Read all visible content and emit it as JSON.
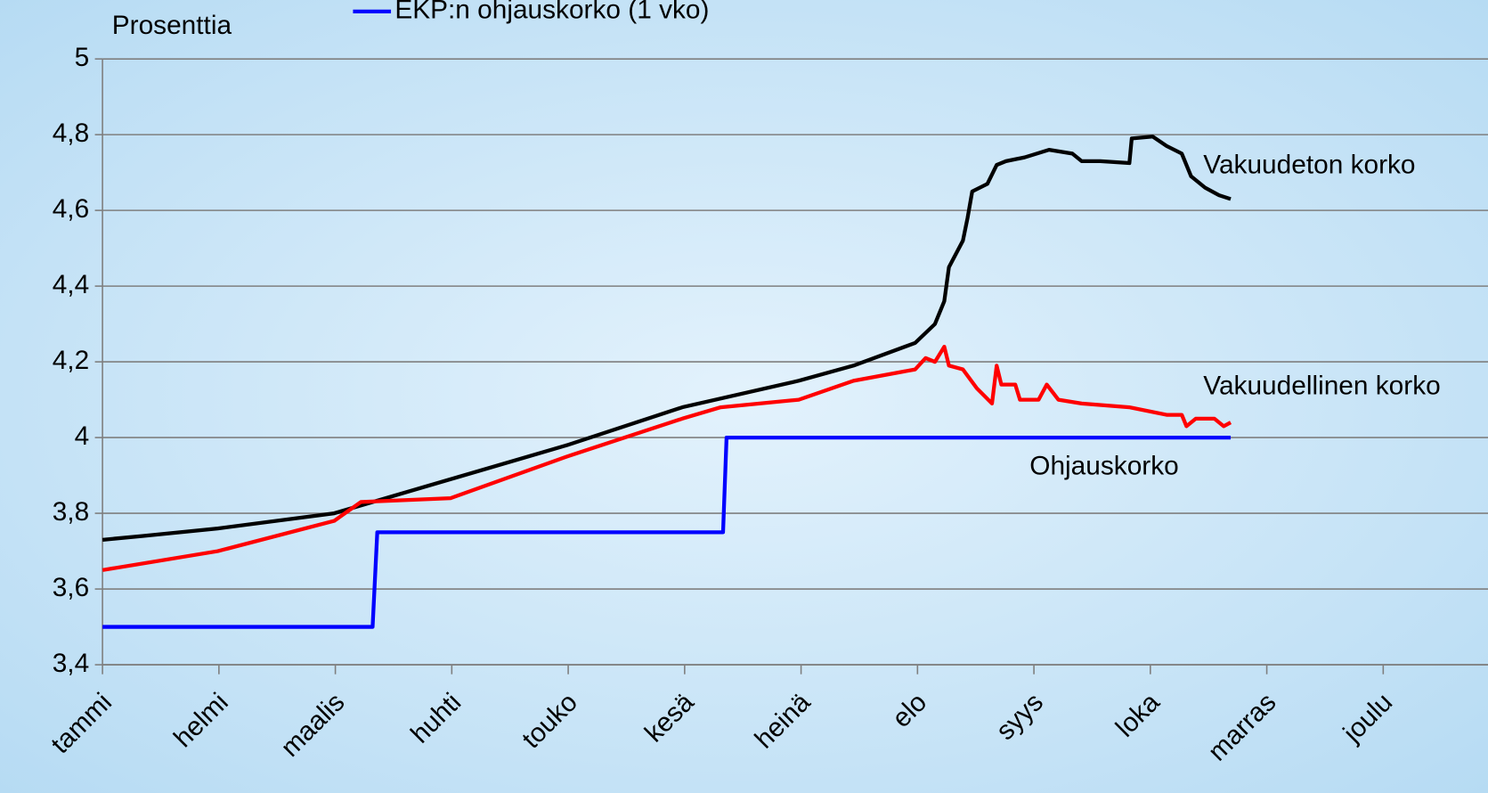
{
  "chart_data": {
    "type": "line",
    "ylabel": "Prosenttia",
    "xlim": [
      0,
      11.9
    ],
    "xticks": [
      {
        "value": 0,
        "label": "tammi"
      },
      {
        "value": 1,
        "label": "helmi"
      },
      {
        "value": 2,
        "label": "maalis"
      },
      {
        "value": 3,
        "label": "huhti"
      },
      {
        "value": 4,
        "label": "touko"
      },
      {
        "value": 5,
        "label": "kesä"
      },
      {
        "value": 6,
        "label": "heinä"
      },
      {
        "value": 7,
        "label": "elo"
      },
      {
        "value": 8,
        "label": "syys"
      },
      {
        "value": 9,
        "label": "loka"
      },
      {
        "value": 10,
        "label": "marras"
      },
      {
        "value": 11,
        "label": "joulu"
      }
    ],
    "ylim": [
      3.4,
      5
    ],
    "yticks": [
      {
        "value": 3.4,
        "label": "3,4"
      },
      {
        "value": 3.6,
        "label": "3,6"
      },
      {
        "value": 3.8,
        "label": "3,8"
      },
      4,
      {
        "value": 4.2,
        "label": "4,2"
      },
      {
        "value": 4.4,
        "label": "4,4"
      },
      {
        "value": 4.6,
        "label": "4,6"
      },
      {
        "value": 4.8,
        "label": "4,8"
      },
      5
    ],
    "grid": true,
    "series": [
      {
        "name": "Vakuudeton korko",
        "color": "#000000",
        "x": [
          0,
          0.34,
          0.99,
          1.99,
          2.99,
          3.99,
          4.98,
          5.98,
          6.45,
          6.98,
          7.15,
          7.23,
          7.27,
          7.39,
          7.43,
          7.47,
          7.6,
          7.68,
          7.76,
          7.92,
          8.13,
          8.33,
          8.41,
          8.57,
          8.82,
          8.84,
          9.02,
          9.14,
          9.27,
          9.35,
          9.47,
          9.59,
          9.69
        ],
        "values": [
          3.73,
          3.74,
          3.76,
          3.8,
          3.89,
          3.98,
          4.08,
          4.15,
          4.19,
          4.25,
          4.3,
          4.36,
          4.45,
          4.52,
          4.58,
          4.65,
          4.67,
          4.72,
          4.73,
          4.74,
          4.76,
          4.75,
          4.73,
          4.73,
          4.725,
          4.79,
          4.795,
          4.77,
          4.75,
          4.69,
          4.66,
          4.64,
          4.63
        ]
      },
      {
        "name": "Vakuudellinen korko",
        "color": "#ff0000",
        "x": [
          0,
          0.99,
          1.99,
          2.22,
          2.99,
          3.99,
          4.98,
          5.31,
          5.98,
          6.45,
          6.98,
          7.07,
          7.15,
          7.23,
          7.27,
          7.39,
          7.51,
          7.64,
          7.68,
          7.72,
          7.84,
          7.88,
          8.04,
          8.11,
          8.21,
          8.41,
          8.82,
          9.14,
          9.27,
          9.31,
          9.39,
          9.55,
          9.63,
          9.69
        ],
        "values": [
          3.65,
          3.7,
          3.78,
          3.83,
          3.84,
          3.95,
          4.05,
          4.08,
          4.1,
          4.15,
          4.18,
          4.21,
          4.2,
          4.24,
          4.19,
          4.18,
          4.13,
          4.09,
          4.19,
          4.14,
          4.14,
          4.1,
          4.1,
          4.14,
          4.1,
          4.09,
          4.08,
          4.06,
          4.06,
          4.03,
          4.05,
          4.05,
          4.03,
          4.04
        ]
      },
      {
        "name": "EKP:n ohjauskorko (1 vko)",
        "color": "#0000ff",
        "x": [
          0,
          2.32,
          2.36,
          5.33,
          5.36,
          9.69
        ],
        "values": [
          3.5,
          3.5,
          3.75,
          3.75,
          4.0,
          4.0
        ]
      }
    ],
    "annotations": [
      "Ohjauskorko"
    ]
  }
}
